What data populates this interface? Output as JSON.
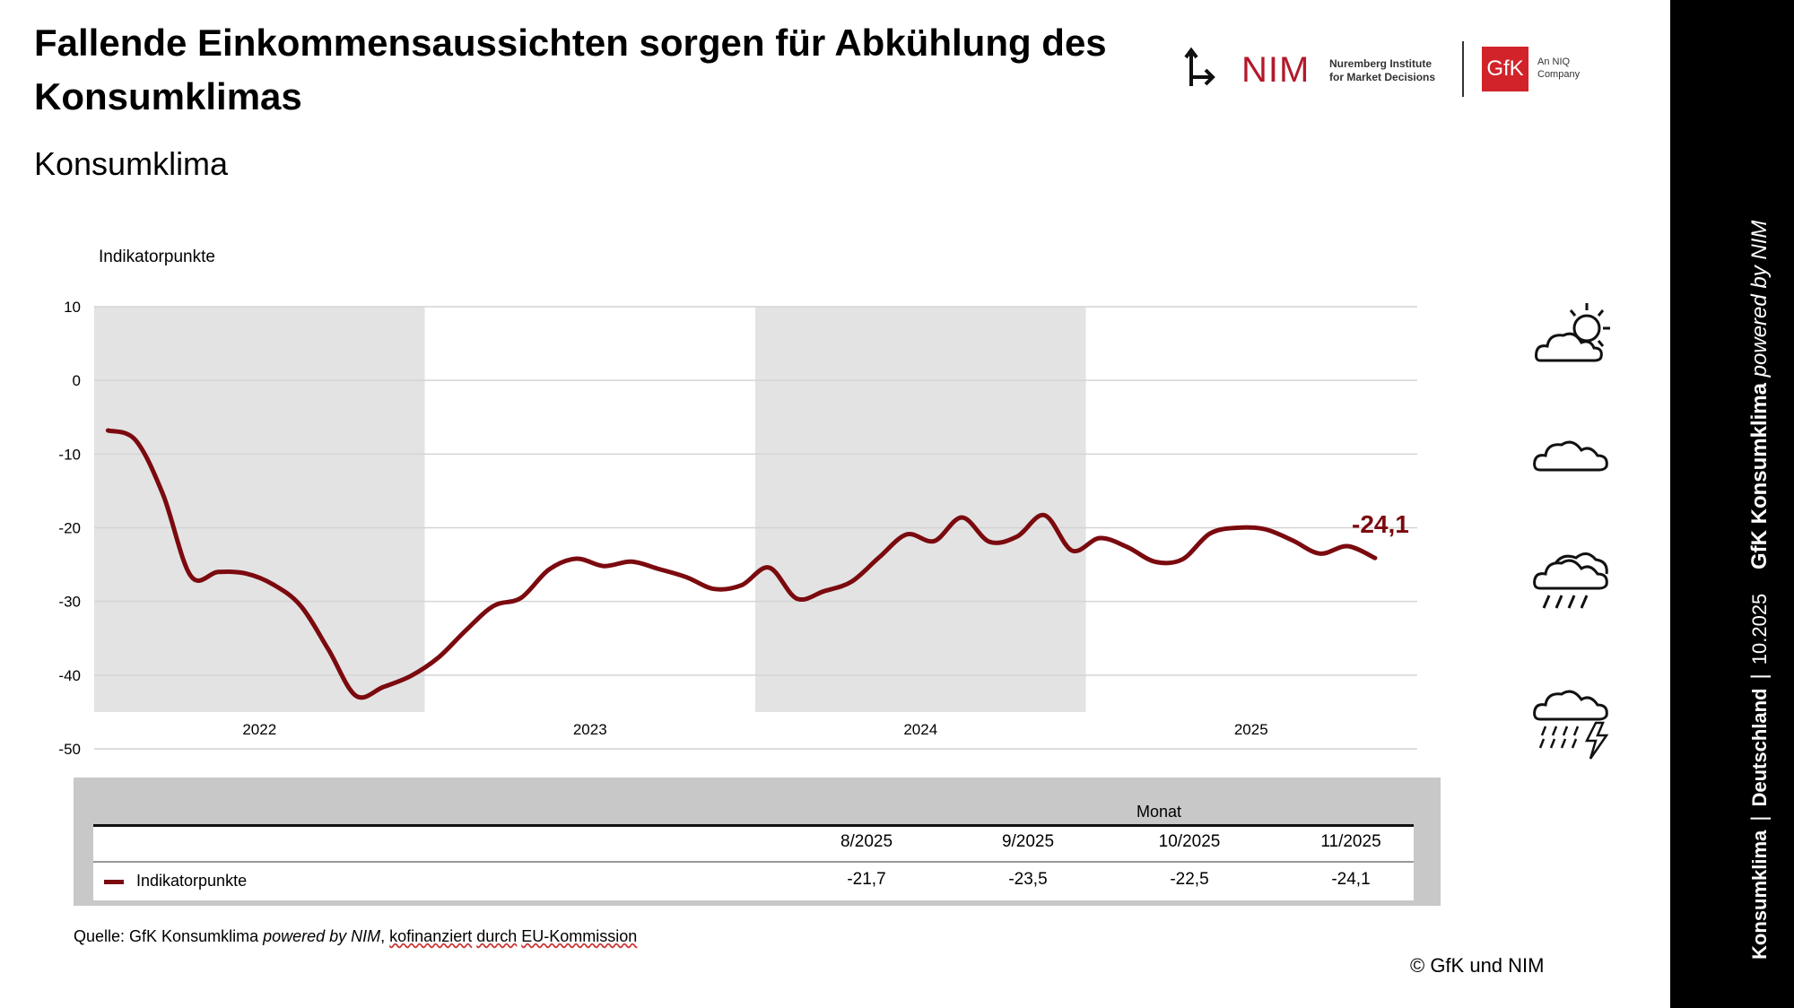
{
  "header": {
    "title": "Fallende Einkommensaussichten sorgen für Abkühlung des Konsumklimas",
    "subtitle": "Konsumklima"
  },
  "logos": {
    "nim_name": "NIM",
    "nim_line1": "Nuremberg Institute",
    "nim_line2": "for Market Decisions",
    "gfk_name": "GfK",
    "gfk_line1": "An NIQ",
    "gfk_line2": "Company"
  },
  "sidebar": {
    "brand": "GfK Konsumklima",
    "powered": "powered by NIM",
    "date": "10.2025",
    "country": "Deutschland",
    "topic": "Konsumklima"
  },
  "weather_icons": [
    "sun-cloud-icon",
    "cloud-icon",
    "rain-cloud-icon",
    "thunderstorm-icon"
  ],
  "chart_data": {
    "type": "line",
    "title": "Konsumklima",
    "ylabel": "Indikatorpunkte",
    "ylim": [
      -50,
      10
    ],
    "yticks": [
      "10",
      "0",
      "-10",
      "-20",
      "-30",
      "-40",
      "-50"
    ],
    "year_labels": [
      "2022",
      "2023",
      "2024",
      "2025"
    ],
    "shaded_years": [
      "2022",
      "2024"
    ],
    "grid": true,
    "color": "#7b0a0f",
    "series": [
      {
        "name": "Indikatorpunkte",
        "x": [
          "1/2022",
          "2/2022",
          "3/2022",
          "4/2022",
          "5/2022",
          "6/2022",
          "7/2022",
          "8/2022",
          "9/2022",
          "10/2022",
          "11/2022",
          "12/2022",
          "1/2023",
          "2/2023",
          "3/2023",
          "4/2023",
          "5/2023",
          "6/2023",
          "7/2023",
          "8/2023",
          "9/2023",
          "10/2023",
          "11/2023",
          "12/2023",
          "1/2024",
          "2/2024",
          "3/2024",
          "4/2024",
          "5/2024",
          "6/2024",
          "7/2024",
          "8/2024",
          "9/2024",
          "10/2024",
          "11/2024",
          "12/2024",
          "1/2025",
          "2/2025",
          "3/2025",
          "4/2025",
          "5/2025",
          "6/2025",
          "7/2025",
          "8/2025",
          "9/2025",
          "10/2025",
          "11/2025"
        ],
        "values": [
          -6.8,
          -8.1,
          -15.5,
          -26.5,
          -26.0,
          -26.2,
          -27.7,
          -30.6,
          -36.5,
          -42.8,
          -41.6,
          -40.1,
          -37.6,
          -33.9,
          -30.6,
          -29.5,
          -25.7,
          -24.2,
          -25.2,
          -24.6,
          -25.6,
          -26.7,
          -28.3,
          -27.8,
          -25.4,
          -29.6,
          -28.6,
          -27.3,
          -24.0,
          -20.9,
          -21.8,
          -18.6,
          -21.9,
          -21.2,
          -18.3,
          -23.1,
          -21.4,
          -22.6,
          -24.6,
          -24.3,
          -20.8,
          -20.0,
          -20.2,
          -21.7,
          -23.5,
          -22.5,
          -24.1
        ]
      }
    ],
    "last_value_label": "-24,1",
    "table": {
      "header": "Monat",
      "months": [
        "8/2025",
        "9/2025",
        "10/2025",
        "11/2025"
      ],
      "row_label": "Indikatorpunkte",
      "values": [
        "-21,7",
        "-23,5",
        "-22,5",
        "-24,1"
      ]
    }
  },
  "footer": {
    "source_prefix": "Quelle: GfK Konsumklima ",
    "source_italic": "powered by NIM",
    "source_sep": ", ",
    "source_u1": "kofinanziert",
    "source_u2": "durch",
    "source_u3": "EU-Kommission",
    "copyright": "© GfK und NIM"
  }
}
